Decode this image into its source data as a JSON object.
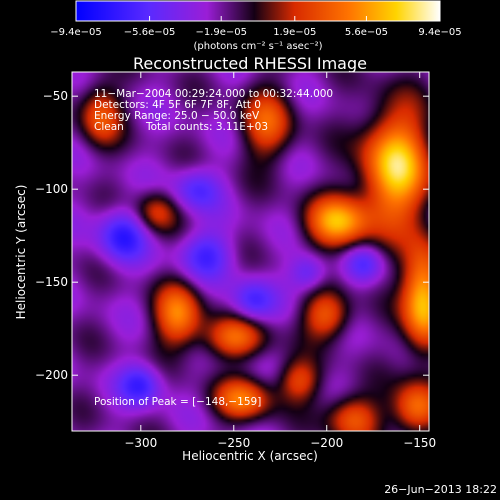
{
  "chart_data": {
    "type": "heatmap",
    "title": "Reconstructed RHESSI Image",
    "xlabel": "Heliocentric X (arcsec)",
    "ylabel": "Heliocentric Y (arcsec)",
    "xlim": [
      -337,
      -145
    ],
    "ylim": [
      -230,
      -37
    ],
    "x_ticks": [
      -300,
      -250,
      -200,
      -150
    ],
    "y_ticks": [
      -50,
      -100,
      -150,
      -200
    ],
    "x_tick_labels": [
      "−300",
      "−250",
      "−200",
      "−150"
    ],
    "y_tick_labels": [
      "−50",
      "−100",
      "−150",
      "−200"
    ],
    "colorbar": {
      "ticks": [
        -9.4e-05,
        -5.6e-05,
        -1.9e-05,
        1.9e-05,
        5.6e-05,
        9.4e-05
      ],
      "tick_labels": [
        "−9.4e−05",
        "−5.6e−05",
        "−1.9e−05",
        "1.9e−05",
        "5.6e−05",
        "9.4e−05"
      ],
      "label": "(photons cm⁻² s⁻¹ asec⁻²)",
      "colors": [
        "#0000ff",
        "#5a2aff",
        "#9a1ed6",
        "#140014",
        "#d82a00",
        "#ff7400",
        "#ffd400",
        "#ffffff"
      ]
    },
    "annotations": {
      "time_range": "11−Mar−2004 00:29:24.000 to 00:32:44.000",
      "detectors": "Detectors: 4F 5F 6F 7F 8F, Att 0",
      "energy": "Energy Range: 25.0 − 50.0 keV",
      "method": "Clean",
      "counts": "Total counts: 3.11E+03",
      "peak": "Position of Peak = [−148,−159]"
    },
    "peak": {
      "x": -148,
      "y": -159
    },
    "sources": [
      {
        "x": -163,
        "y": -88,
        "amp": 1.0,
        "sx": 13,
        "sy": 22
      },
      {
        "x": -148,
        "y": -159,
        "amp": 1.0,
        "sx": 8,
        "sy": 20
      },
      {
        "x": -194,
        "y": -118,
        "amp": 0.85,
        "sx": 12,
        "sy": 10
      },
      {
        "x": -152,
        "y": -218,
        "amp": 0.7,
        "sx": 9,
        "sy": 10
      },
      {
        "x": -186,
        "y": -223,
        "amp": 0.6,
        "sx": 10,
        "sy": 9
      },
      {
        "x": -245,
        "y": -213,
        "amp": 0.65,
        "sx": 11,
        "sy": 8
      },
      {
        "x": -280,
        "y": -168,
        "amp": 0.7,
        "sx": 9,
        "sy": 12
      },
      {
        "x": -250,
        "y": -180,
        "amp": 0.6,
        "sx": 12,
        "sy": 8
      },
      {
        "x": -232,
        "y": -65,
        "amp": 0.55,
        "sx": 10,
        "sy": 14
      },
      {
        "x": -322,
        "y": -60,
        "amp": 0.55,
        "sx": 8,
        "sy": 12
      },
      {
        "x": -200,
        "y": -168,
        "amp": 0.6,
        "sx": 9,
        "sy": 9
      },
      {
        "x": -292,
        "y": -112,
        "amp": 0.45,
        "sx": 8,
        "sy": 8
      },
      {
        "x": -215,
        "y": -203,
        "amp": 0.5,
        "sx": 8,
        "sy": 8
      },
      {
        "x": -265,
        "y": -135,
        "amp": -0.45,
        "sx": 10,
        "sy": 9
      },
      {
        "x": -310,
        "y": -125,
        "amp": -0.55,
        "sx": 9,
        "sy": 10
      },
      {
        "x": -300,
        "y": -205,
        "amp": -0.5,
        "sx": 8,
        "sy": 8
      },
      {
        "x": -240,
        "y": -160,
        "amp": -0.45,
        "sx": 8,
        "sy": 8
      },
      {
        "x": -210,
        "y": -145,
        "amp": -0.4,
        "sx": 7,
        "sy": 7
      },
      {
        "x": -270,
        "y": -100,
        "amp": -0.4,
        "sx": 9,
        "sy": 8
      },
      {
        "x": -180,
        "y": -140,
        "amp": -0.35,
        "sx": 7,
        "sy": 7
      }
    ]
  },
  "footer": {
    "date": "26−Jun−2013 18:22"
  }
}
